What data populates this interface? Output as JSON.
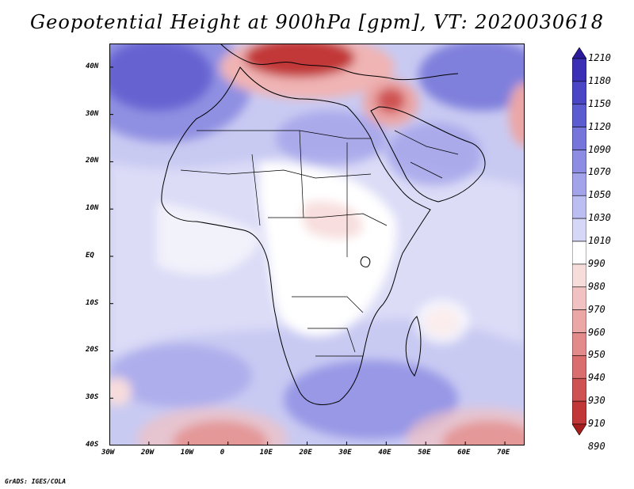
{
  "title": "Geopotential Height at 900hPa [gpm], VT: 2020030618",
  "credit": "GrADS: IGES/COLA",
  "map": {
    "projection": "lat-lon",
    "lon_range": [
      -30,
      75
    ],
    "lat_range": [
      -40,
      45
    ],
    "x_ticks": [
      "30W",
      "20W",
      "10W",
      "0",
      "10E",
      "20E",
      "30E",
      "40E",
      "50E",
      "60E",
      "70E"
    ],
    "y_ticks": [
      "40N",
      "30N",
      "20N",
      "10N",
      "EQ",
      "10S",
      "20S",
      "30S",
      "40S"
    ]
  },
  "colorbar": {
    "levels": [
      "1210",
      "1180",
      "1150",
      "1120",
      "1090",
      "1070",
      "1050",
      "1030",
      "1010",
      "990",
      "980",
      "970",
      "960",
      "950",
      "940",
      "930",
      "910",
      "890"
    ],
    "colors": [
      "#2c1a9c",
      "#3a2fb5",
      "#4a46c6",
      "#5c5cd1",
      "#7575db",
      "#8c8ce3",
      "#a3a3ea",
      "#bcbdf0",
      "#d6d7f6",
      "#ffffff",
      "#f7dcdc",
      "#f2c2c2",
      "#eba6a6",
      "#e38a8a",
      "#da6e6e",
      "#cf5252",
      "#c23838",
      "#a51e1e"
    ]
  }
}
